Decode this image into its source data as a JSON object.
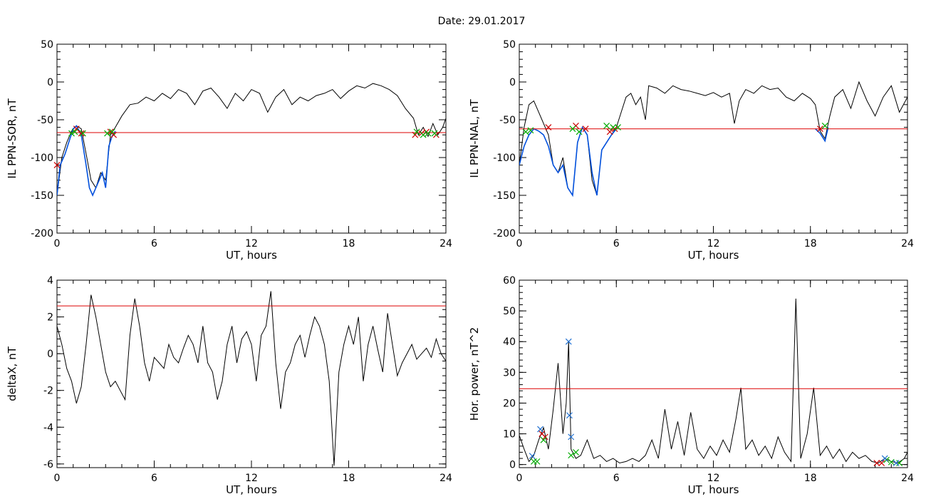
{
  "figure": {
    "title": "Date:  29.01.2017"
  },
  "chart_data": [
    {
      "type": "line",
      "xlabel": "UT, hours",
      "ylabel": "IL PPN-SOR, nT",
      "xlim": [
        0,
        24
      ],
      "ylim": [
        -200,
        50
      ],
      "xticks": [
        0,
        6,
        12,
        18,
        24
      ],
      "yticks": [
        -200,
        -150,
        -100,
        -50,
        0,
        50
      ],
      "threshold": -67,
      "series": [
        {
          "color": "#000000",
          "x": [
            0.0,
            0.3,
            0.6,
            0.9,
            1.2,
            1.5,
            1.8,
            2.1,
            2.4,
            2.7,
            3.0,
            3.3,
            3.6,
            4.0,
            4.5,
            5.0,
            5.5,
            6.0,
            6.5,
            7.0,
            7.5,
            8.0,
            8.5,
            9.0,
            9.5,
            10.0,
            10.5,
            11.0,
            11.5,
            12.0,
            12.5,
            13.0,
            13.5,
            14.0,
            14.5,
            15.0,
            15.5,
            16.0,
            16.5,
            17.0,
            17.5,
            18.0,
            18.5,
            19.0,
            19.5,
            20.0,
            20.5,
            21.0,
            21.5,
            22.0,
            22.3,
            22.6,
            22.9,
            23.2,
            23.5,
            23.8,
            24.0
          ],
          "y": [
            -150,
            -100,
            -80,
            -65,
            -58,
            -62,
            -95,
            -130,
            -140,
            -120,
            -130,
            -70,
            -60,
            -45,
            -30,
            -28,
            -20,
            -25,
            -15,
            -22,
            -10,
            -15,
            -30,
            -12,
            -8,
            -20,
            -35,
            -15,
            -25,
            -10,
            -15,
            -40,
            -20,
            -10,
            -30,
            -20,
            -25,
            -18,
            -15,
            -10,
            -22,
            -12,
            -5,
            -8,
            -2,
            -5,
            -10,
            -18,
            -35,
            -48,
            -70,
            -60,
            -72,
            -55,
            -70,
            -60,
            -48
          ]
        },
        {
          "color": "#0050dd",
          "x": [
            0.0,
            0.2,
            0.5,
            0.8,
            1.0,
            1.2,
            1.5,
            1.8,
            2.0,
            2.2,
            2.5,
            2.8,
            3.0,
            3.2,
            3.4,
            3.6
          ],
          "y": [
            -150,
            -110,
            -95,
            -75,
            -62,
            -58,
            -70,
            -110,
            -140,
            -150,
            -135,
            -120,
            -140,
            -85,
            -72,
            -65
          ]
        }
      ],
      "markers": [
        {
          "color": "#cc0000",
          "x": [
            0.0,
            1.2,
            1.5,
            3.3,
            3.5,
            22.1,
            22.5,
            22.8,
            23.4
          ],
          "y": [
            -110,
            -62,
            -68,
            -66,
            -70,
            -70,
            -68,
            -66,
            -70
          ]
        },
        {
          "color": "#00aa00",
          "x": [
            0.9,
            1.1,
            1.6,
            3.1,
            3.4,
            22.2,
            22.6,
            22.9,
            23.3
          ],
          "y": [
            -68,
            -66,
            -68,
            -68,
            -66,
            -66,
            -70,
            -68,
            -68
          ]
        }
      ]
    },
    {
      "type": "line",
      "xlabel": "UT, hours",
      "ylabel": "IL PPN-NAL, nT",
      "xlim": [
        0,
        24
      ],
      "ylim": [
        -200,
        50
      ],
      "xticks": [
        0,
        6,
        12,
        18,
        24
      ],
      "yticks": [
        -200,
        -150,
        -100,
        -50,
        0,
        50
      ],
      "threshold": -62,
      "series": [
        {
          "color": "#000000",
          "x": [
            0.0,
            0.3,
            0.6,
            0.9,
            1.2,
            1.5,
            1.8,
            2.1,
            2.4,
            2.7,
            3.0,
            3.3,
            3.6,
            3.9,
            4.2,
            4.5,
            4.8,
            5.1,
            5.4,
            5.7,
            6.0,
            6.3,
            6.6,
            6.9,
            7.2,
            7.5,
            7.8,
            8.0,
            8.5,
            9.0,
            9.5,
            10.0,
            10.5,
            11.0,
            11.5,
            12.0,
            12.5,
            13.0,
            13.3,
            13.6,
            14.0,
            14.5,
            15.0,
            15.5,
            16.0,
            16.5,
            17.0,
            17.5,
            18.0,
            18.3,
            18.6,
            18.9,
            19.2,
            19.5,
            20.0,
            20.5,
            21.0,
            21.5,
            22.0,
            22.5,
            23.0,
            23.5,
            24.0
          ],
          "y": [
            -110,
            -60,
            -30,
            -25,
            -40,
            -55,
            -70,
            -110,
            -120,
            -100,
            -140,
            -150,
            -80,
            -60,
            -70,
            -130,
            -150,
            -90,
            -80,
            -70,
            -60,
            -40,
            -20,
            -15,
            -30,
            -20,
            -50,
            -5,
            -8,
            -15,
            -5,
            -10,
            -12,
            -15,
            -18,
            -14,
            -20,
            -15,
            -55,
            -25,
            -10,
            -15,
            -5,
            -10,
            -8,
            -20,
            -25,
            -15,
            -22,
            -30,
            -65,
            -75,
            -45,
            -20,
            -10,
            -35,
            0,
            -25,
            -45,
            -20,
            -5,
            -40,
            -20
          ]
        },
        {
          "color": "#0050dd",
          "x": [
            0.0,
            0.3,
            0.6,
            0.9,
            1.2,
            1.5,
            1.8,
            2.1,
            2.4,
            2.7,
            3.0,
            3.3,
            3.6,
            3.9,
            4.2,
            4.5,
            4.8,
            5.1,
            5.4,
            5.7,
            6.0
          ],
          "y": [
            -110,
            -85,
            -70,
            -62,
            -65,
            -70,
            -85,
            -110,
            -120,
            -110,
            -140,
            -150,
            -80,
            -60,
            -70,
            -120,
            -150,
            -90,
            -80,
            -70,
            -62
          ]
        },
        {
          "color": "#0050dd",
          "x": [
            18.3,
            18.6,
            18.9,
            19.1
          ],
          "y": [
            -62,
            -68,
            -78,
            -60
          ]
        }
      ],
      "markers": [
        {
          "color": "#cc0000",
          "x": [
            1.8,
            3.5,
            4.1,
            5.6,
            5.9,
            18.6
          ],
          "y": [
            -60,
            -58,
            -62,
            -66,
            -62,
            -62
          ]
        },
        {
          "color": "#00aa00",
          "x": [
            0.4,
            0.7,
            3.3,
            3.7,
            5.4,
            5.8,
            6.1,
            18.9
          ],
          "y": [
            -66,
            -64,
            -62,
            -66,
            -58,
            -60,
            -60,
            -58
          ]
        }
      ]
    },
    {
      "type": "line",
      "xlabel": "UT, hours",
      "ylabel": "deltaX, nT",
      "xlim": [
        0,
        24
      ],
      "ylim": [
        -6.2,
        4
      ],
      "xticks": [
        0,
        6,
        12,
        18,
        24
      ],
      "yticks": [
        -6,
        -4,
        -2,
        0,
        2,
        4
      ],
      "threshold": 2.6,
      "series": [
        {
          "color": "#000000",
          "x": [
            0.0,
            0.3,
            0.6,
            0.9,
            1.2,
            1.5,
            1.8,
            2.1,
            2.4,
            2.7,
            3.0,
            3.3,
            3.6,
            3.9,
            4.2,
            4.5,
            4.8,
            5.1,
            5.4,
            5.7,
            6.0,
            6.3,
            6.6,
            6.9,
            7.2,
            7.5,
            7.8,
            8.1,
            8.4,
            8.7,
            9.0,
            9.3,
            9.6,
            9.9,
            10.2,
            10.5,
            10.8,
            11.1,
            11.4,
            11.7,
            12.0,
            12.3,
            12.6,
            12.9,
            13.2,
            13.5,
            13.8,
            14.1,
            14.4,
            14.7,
            15.0,
            15.3,
            15.6,
            15.9,
            16.2,
            16.5,
            16.8,
            17.1,
            17.4,
            17.7,
            18.0,
            18.3,
            18.6,
            18.9,
            19.2,
            19.5,
            19.8,
            20.1,
            20.4,
            20.7,
            21.0,
            21.3,
            21.6,
            21.9,
            22.2,
            22.5,
            22.8,
            23.1,
            23.4,
            23.7,
            24.0
          ],
          "y": [
            1.5,
            0.5,
            -0.8,
            -1.5,
            -2.7,
            -1.8,
            0.5,
            3.2,
            2.0,
            0.5,
            -1.0,
            -1.8,
            -1.5,
            -2.0,
            -2.5,
            1.0,
            3.0,
            1.5,
            -0.5,
            -1.5,
            -0.2,
            -0.5,
            -0.8,
            0.5,
            -0.2,
            -0.5,
            0.3,
            1.0,
            0.5,
            -0.5,
            1.5,
            -0.5,
            -1.0,
            -2.5,
            -1.5,
            0.5,
            1.5,
            -0.5,
            0.8,
            1.2,
            0.5,
            -1.5,
            1.0,
            1.5,
            3.4,
            -0.5,
            -3.0,
            -1.0,
            -0.5,
            0.5,
            1.0,
            -0.2,
            1.0,
            2.0,
            1.5,
            0.5,
            -1.5,
            -6.1,
            -1.0,
            0.5,
            1.5,
            0.5,
            2.0,
            -1.5,
            0.5,
            1.5,
            0.2,
            -1.0,
            2.2,
            0.5,
            -1.2,
            -0.5,
            0.0,
            0.5,
            -0.3,
            0.0,
            0.3,
            -0.2,
            0.8,
            0.0,
            -0.4
          ]
        }
      ],
      "markers": []
    },
    {
      "type": "line",
      "xlabel": "UT, hours",
      "ylabel": "Hor. power, nT^2",
      "xlim": [
        0,
        24
      ],
      "ylim": [
        -1,
        60
      ],
      "xticks": [
        0,
        6,
        12,
        18,
        24
      ],
      "yticks": [
        0,
        10,
        20,
        30,
        40,
        50,
        60
      ],
      "threshold": 24.7,
      "series": [
        {
          "color": "#000000",
          "x": [
            0.0,
            0.3,
            0.6,
            0.9,
            1.2,
            1.5,
            1.8,
            2.1,
            2.4,
            2.7,
            2.9,
            3.05,
            3.2,
            3.5,
            3.8,
            4.2,
            4.6,
            5.0,
            5.4,
            5.8,
            6.2,
            6.6,
            7.0,
            7.4,
            7.8,
            8.2,
            8.6,
            9.0,
            9.4,
            9.8,
            10.2,
            10.6,
            11.0,
            11.4,
            11.8,
            12.2,
            12.6,
            13.0,
            13.4,
            13.7,
            14.0,
            14.4,
            14.8,
            15.2,
            15.6,
            16.0,
            16.4,
            16.8,
            17.1,
            17.4,
            17.8,
            18.2,
            18.6,
            19.0,
            19.4,
            19.8,
            20.2,
            20.6,
            21.0,
            21.4,
            21.8,
            22.2,
            22.6,
            23.0,
            23.4,
            23.8,
            24.0
          ],
          "y": [
            9.5,
            5.0,
            1.0,
            3.0,
            8.0,
            12.0,
            5.0,
            18.0,
            33.0,
            10.0,
            20.0,
            40.0,
            5.0,
            2.0,
            3.0,
            8.0,
            2.0,
            3.0,
            1.0,
            2.0,
            0.5,
            1.0,
            2.0,
            1.0,
            3.0,
            8.0,
            2.0,
            18.0,
            5.0,
            14.0,
            3.0,
            17.0,
            5.0,
            2.0,
            6.0,
            3.0,
            8.0,
            4.0,
            15.0,
            25.0,
            5.0,
            8.0,
            3.0,
            6.0,
            2.0,
            9.0,
            4.0,
            1.0,
            54.0,
            2.0,
            10.0,
            25.0,
            3.0,
            6.0,
            2.0,
            5.0,
            1.0,
            4.0,
            2.0,
            3.0,
            1.0,
            0.5,
            2.0,
            1.0,
            0.5,
            2.0,
            4.0
          ]
        }
      ],
      "markers": [
        {
          "color": "#cc0000",
          "x": [
            1.4,
            1.6,
            22.1,
            22.4
          ],
          "y": [
            10,
            9,
            0.5,
            0.5
          ]
        },
        {
          "color": "#00aa00",
          "x": [
            0.9,
            1.1,
            1.5,
            3.2,
            3.5,
            22.7,
            23.0,
            23.5
          ],
          "y": [
            1,
            1,
            8,
            3,
            4,
            1.5,
            0.8,
            0.5
          ]
        },
        {
          "color": "#1f6fd0",
          "x": [
            0.8,
            1.3,
            3.05,
            3.1,
            3.2,
            22.6,
            23.3
          ],
          "y": [
            2.8,
            11.5,
            40,
            16,
            9,
            2,
            0.5
          ]
        }
      ]
    }
  ]
}
